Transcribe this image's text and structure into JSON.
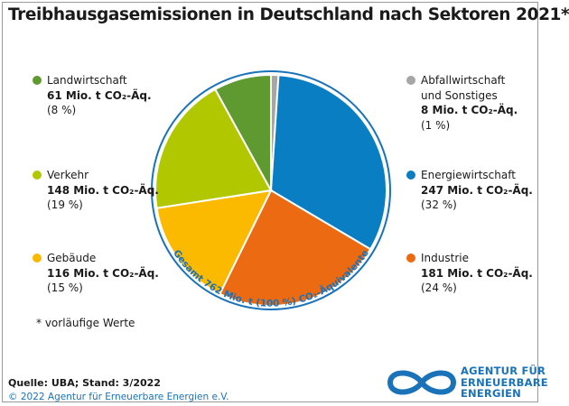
{
  "title": "Treibhausgasemissionen in Deutschland nach Sektoren 2021*",
  "chart_data": {
    "type": "pie",
    "total_label": "Gesamt 762 Mio. t (100 %) CO₂-Äquivalente",
    "slices": [
      {
        "name": "Abfallwirtschaft und Sonstiges",
        "value": 8,
        "value_text": "8 Mio. t CO₂-Äq.",
        "percent": 1,
        "percent_text": "(1 %)",
        "color": "#a6a6a6"
      },
      {
        "name": "Energiewirtschaft",
        "value": 247,
        "value_text": "247 Mio. t CO₂-Äq.",
        "percent": 32,
        "percent_text": "(32 %)",
        "color": "#0a7ec2"
      },
      {
        "name": "Industrie",
        "value": 181,
        "value_text": "181 Mio. t CO₂-Äq.",
        "percent": 24,
        "percent_text": "(24 %)",
        "color": "#ec6a12"
      },
      {
        "name": "Gebäude",
        "value": 116,
        "value_text": "116 Mio. t CO₂-Äq.",
        "percent": 15,
        "percent_text": "(15 %)",
        "color": "#fbb900"
      },
      {
        "name": "Verkehr",
        "value": 148,
        "value_text": "148 Mio. t CO₂-Äq.",
        "percent": 19,
        "percent_text": "(19 %)",
        "color": "#b1c800"
      },
      {
        "name": "Landwirtschaft",
        "value": 61,
        "value_text": "61 Mio. t CO₂-Äq.",
        "percent": 8,
        "percent_text": "(8 %)",
        "color": "#5f9a31"
      }
    ]
  },
  "legend_left": [
    {
      "line1": "Landwirtschaft",
      "line2": "",
      "value": "61 Mio. t CO₂-Äq.",
      "percent": "(8 %)",
      "color": "#5f9a31"
    },
    {
      "line1": "Verkehr",
      "line2": "",
      "value": "148 Mio. t CO₂-Äq.",
      "percent": "(19 %)",
      "color": "#b1c800"
    },
    {
      "line1": "Gebäude",
      "line2": "",
      "value": "116 Mio. t CO₂-Äq.",
      "percent": "(15 %)",
      "color": "#fbb900"
    }
  ],
  "legend_right": [
    {
      "line1": "Abfallwirtschaft",
      "line2": "und Sonstiges",
      "value": "8 Mio. t CO₂-Äq.",
      "percent": "(1 %)",
      "color": "#a6a6a6"
    },
    {
      "line1": "Energiewirtschaft",
      "line2": "",
      "value": "247 Mio. t CO₂-Äq.",
      "percent": "(32 %)",
      "color": "#0a7ec2"
    },
    {
      "line1": "Industrie",
      "line2": "",
      "value": "181 Mio. t CO₂-Äq.",
      "percent": "(24 %)",
      "color": "#ec6a12"
    }
  ],
  "note": "* vorläufige Werte",
  "source": "Quelle: UBA; Stand: 3/2022",
  "copyright": "© 2022 Agentur für Erneuerbare Energien e.V.",
  "logo": {
    "line1": "AGENTUR FÜR",
    "line2": "ERNEUERBARE",
    "line3": "ENERGIEN",
    "icon": "infinity-icon",
    "color": "#1a72b8"
  }
}
